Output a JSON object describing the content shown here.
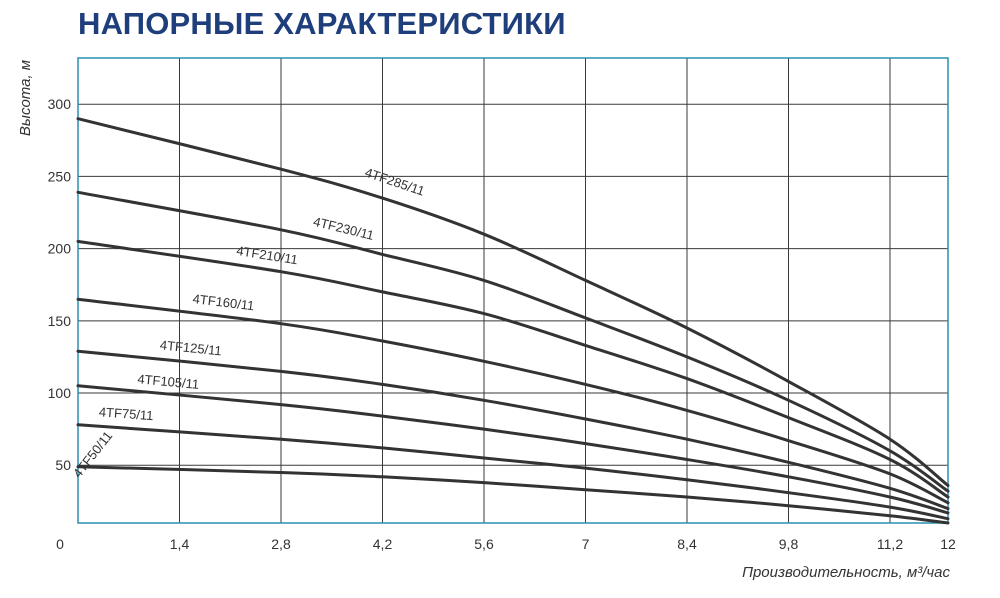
{
  "page": {
    "title": "НАПОРНЫЕ ХАРАКТЕРИСТИКИ"
  },
  "colors": {
    "title": "#1f3e7c",
    "frame": "#2a8fb0",
    "grid": "#3a3a3a",
    "curve": "#333333"
  },
  "chart_data": {
    "type": "line",
    "title": "НАПОРНЫЕ ХАРАКТЕРИСТИКИ",
    "xlabel": "Производительность, м³/час",
    "ylabel": "Высота, м",
    "xlim": [
      0,
      12
    ],
    "ylim": [
      10,
      332
    ],
    "x_ticks": [
      0,
      1.4,
      2.8,
      4.2,
      5.6,
      7,
      8.4,
      9.8,
      11.2,
      12
    ],
    "x_tick_labels": [
      "0",
      "1,4",
      "2,8",
      "4,2",
      "5,6",
      "7",
      "8,4",
      "9,8",
      "11,2",
      "12"
    ],
    "y_ticks": [
      50,
      100,
      150,
      200,
      250,
      300
    ],
    "y_tick_labels": [
      "50",
      "100",
      "150",
      "200",
      "250",
      "300"
    ],
    "grid": true,
    "series": [
      {
        "name": "4TF285/11",
        "x": [
          0,
          2.8,
          4.2,
          5.6,
          7,
          8.4,
          9.8,
          11.2,
          12
        ],
        "y": [
          290,
          255,
          235,
          210,
          178,
          145,
          108,
          68,
          36
        ]
      },
      {
        "name": "4TF230/11",
        "x": [
          0,
          2.8,
          4.2,
          5.6,
          7,
          8.4,
          9.8,
          11.2,
          12
        ],
        "y": [
          239,
          213,
          196,
          178,
          152,
          125,
          95,
          60,
          32
        ]
      },
      {
        "name": "4TF210/11",
        "x": [
          0,
          2.8,
          4.2,
          5.6,
          7,
          8.4,
          9.8,
          11.2,
          12
        ],
        "y": [
          205,
          184,
          170,
          155,
          133,
          110,
          83,
          54,
          28
        ]
      },
      {
        "name": "4TF160/11",
        "x": [
          0,
          2.8,
          4.2,
          5.6,
          7,
          8.4,
          9.8,
          11.2,
          12
        ],
        "y": [
          165,
          148,
          136,
          122,
          106,
          88,
          67,
          44,
          24
        ]
      },
      {
        "name": "4TF125/11",
        "x": [
          0,
          2.8,
          4.2,
          5.6,
          7,
          8.4,
          9.8,
          11.2,
          12
        ],
        "y": [
          129,
          115,
          106,
          95,
          82,
          68,
          52,
          34,
          20
        ]
      },
      {
        "name": "4TF105/11",
        "x": [
          0,
          2.8,
          4.2,
          5.6,
          7,
          8.4,
          9.8,
          11.2,
          12
        ],
        "y": [
          105,
          92,
          84,
          75,
          65,
          54,
          42,
          28,
          17
        ]
      },
      {
        "name": "4TF75/11",
        "x": [
          0,
          2.8,
          4.2,
          5.6,
          7,
          8.4,
          9.8,
          11.2,
          12
        ],
        "y": [
          78,
          68,
          62,
          55,
          48,
          40,
          31,
          21,
          13
        ]
      },
      {
        "name": "4TF50/11",
        "x": [
          0,
          2.8,
          4.2,
          5.6,
          7,
          8.4,
          9.8,
          11.2,
          12
        ],
        "y": [
          49,
          45,
          42,
          38,
          33,
          28,
          22,
          15,
          10
        ]
      }
    ]
  }
}
